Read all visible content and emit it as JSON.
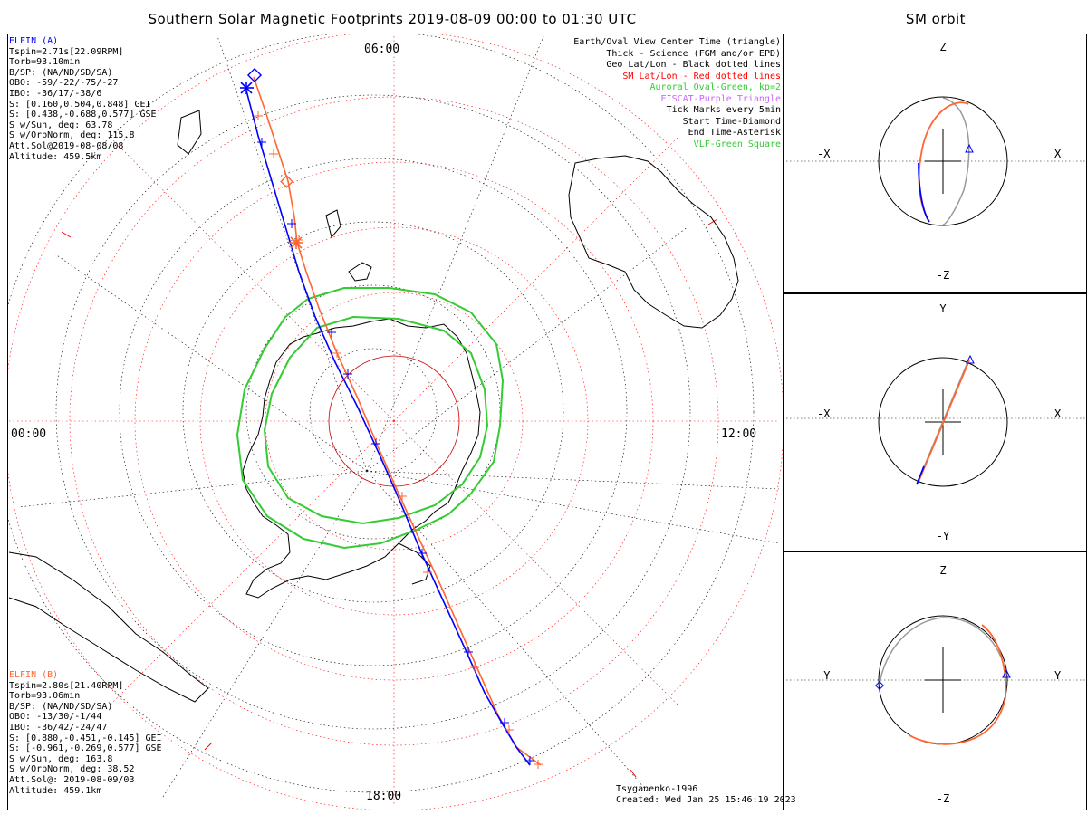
{
  "title": "Southern Solar Magnetic Footprints 2019-08-09 00:00 to 01:30 UTC",
  "side_title": "SM orbit",
  "elfin_a": {
    "lines": [
      "ELFIN (A)",
      "Tspin=2.71s[22.09RPM]",
      "Torb=93.10min",
      "B/SP: (NA/ND/SD/SA)",
      "OBO: -59/-22/-75/-27",
      "IBO: -36/17/-38/6",
      "S: [0.160,0.504,0.848] GEI",
      "S: [0.438,-0.688,0.577] GSE",
      "S w/Sun, deg: 63.78",
      "S w/OrbNorm, deg: 115.8",
      "Att.Sol@2019-08-08/08",
      "Altitude: 459.5km"
    ],
    "color": "#0000ff"
  },
  "elfin_b": {
    "lines": [
      "ELFIN (B)",
      "Tspin=2.80s[21.40RPM]",
      "Torb=93.06min",
      "B/SP: (NA/ND/SD/SA)",
      "OBO: -13/30/-1/44",
      "IBO: -36/42/-24/47",
      "S: [0.880,-0.451,-0.145] GEI",
      "S: [-0.961,-0.269,0.577] GSE",
      "S w/Sun, deg: 163.8",
      "S w/OrbNorm, deg: 38.52",
      "Att.Sol@: 2019-08-09/03",
      "Altitude: 459.1km"
    ],
    "color": "#ff6633"
  },
  "legend": [
    {
      "text": "Earth/Oval View Center Time (triangle)",
      "color": "#000000"
    },
    {
      "text": "Thick - Science (FGM and/or EPD)",
      "color": "#000000"
    },
    {
      "text": "Geo Lat/Lon - Black dotted lines",
      "color": "#000000"
    },
    {
      "text": "SM Lat/Lon - Red dotted lines",
      "color": "#ff0000"
    },
    {
      "text": "Auroral Oval-Green, kp=2",
      "color": "#33cc33"
    },
    {
      "text": "EISCAT-Purple Triangle",
      "color": "#cc66ff"
    },
    {
      "text": "Tick Marks every 5min",
      "color": "#000000"
    },
    {
      "text": "Start Time-Diamond",
      "color": "#000000"
    },
    {
      "text": "End Time-Asterisk",
      "color": "#000000"
    },
    {
      "text": "VLF-Green Square",
      "color": "#33cc33"
    }
  ],
  "mlt_labels": {
    "top": "06:00",
    "left": "00:00",
    "right": "12:00",
    "bottom": "18:00"
  },
  "credit": [
    "Tsyganenko-1996",
    "Created: Wed Jan 25 15:46:19 2023"
  ],
  "orbit_panels": [
    {
      "top": "Z",
      "bottom": "-Z",
      "left": "-X",
      "right": "X"
    },
    {
      "top": "Y",
      "bottom": "-Y",
      "left": "-X",
      "right": "X"
    },
    {
      "top": "Z",
      "bottom": "-Z",
      "left": "-Y",
      "right": "Y"
    }
  ],
  "colors": {
    "elfin_a": "#0000ff",
    "elfin_b": "#ff6633",
    "oval": "#33cc33",
    "sm_grid": "#ff0000",
    "geo_grid": "#000000"
  }
}
